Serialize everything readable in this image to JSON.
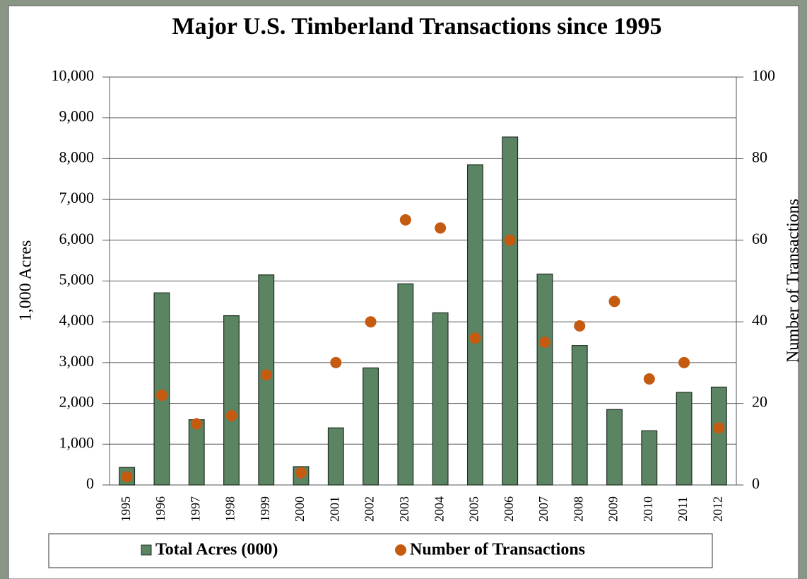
{
  "chart_data": {
    "type": "bar",
    "title": "Major U.S. Timberland Transactions since 1995",
    "y_label": "1,000 Acres",
    "y2_label": "Number of  Transactions",
    "categories": [
      "1995",
      "1996",
      "1997",
      "1998",
      "1999",
      "2000",
      "2001",
      "2002",
      "2003",
      "2004",
      "2005",
      "2006",
      "2007",
      "2008",
      "2009",
      "2010",
      "2011",
      "2012"
    ],
    "series": [
      {
        "name": "Total Acres (000)",
        "type": "bar",
        "color": "#5b8462",
        "values": [
          430,
          4710,
          1600,
          4150,
          5150,
          450,
          1400,
          2870,
          4930,
          4220,
          7850,
          8530,
          5170,
          3420,
          1850,
          1330,
          2270,
          2400
        ]
      },
      {
        "name": "Number of Transactions",
        "type": "scatter",
        "axis": "y2",
        "color": "#c55a11",
        "values": [
          2,
          22,
          15,
          17,
          27,
          3,
          30,
          40,
          65,
          63,
          36,
          60,
          35,
          39,
          45,
          26,
          30,
          14
        ]
      }
    ],
    "ylim": [
      0,
      10000
    ],
    "yticks": [
      0,
      {
        "value": 1000,
        "label": "1,000"
      },
      {
        "value": 2000,
        "label": "2,000"
      },
      {
        "value": 3000,
        "label": "3,000"
      },
      {
        "value": 4000,
        "label": "4,000"
      },
      {
        "value": 5000,
        "label": "5,000"
      },
      {
        "value": 6000,
        "label": "6,000"
      },
      {
        "value": 7000,
        "label": "7,000"
      },
      {
        "value": 8000,
        "label": "8,000"
      },
      {
        "value": 9000,
        "label": "9,000"
      },
      {
        "value": 10000,
        "label": "10,000"
      }
    ],
    "y2lim": [
      0,
      100
    ],
    "y2ticks": [
      0,
      20,
      40,
      60,
      80,
      100
    ],
    "grid": true
  }
}
